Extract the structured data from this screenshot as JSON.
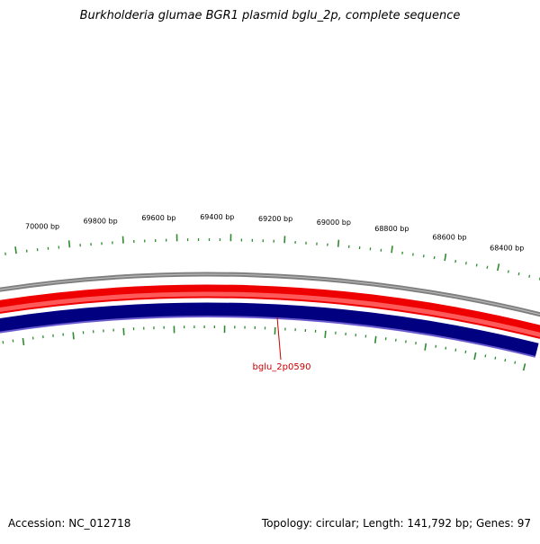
{
  "title": "Burkholderia glumae BGR1 plasmid bglu_2p, complete sequence",
  "footer": {
    "accession": "Accession: NC_012718",
    "summary": "Topology: circular; Length: 141,792 bp; Genes: 97"
  },
  "colors": {
    "backbone": "#7f7f7f",
    "forward_strand": "#ee0000",
    "reverse_strand": "#000080",
    "ticks": "#2e8b2e",
    "gene_label": "#cc0000"
  },
  "position_labels": [
    "70000 bp",
    "69800 bp",
    "69600 bp",
    "69400 bp",
    "69200 bp",
    "69000 bp",
    "68800 bp",
    "68600 bp",
    "68400 bp"
  ],
  "gene_label": "bglu_2p0590"
}
